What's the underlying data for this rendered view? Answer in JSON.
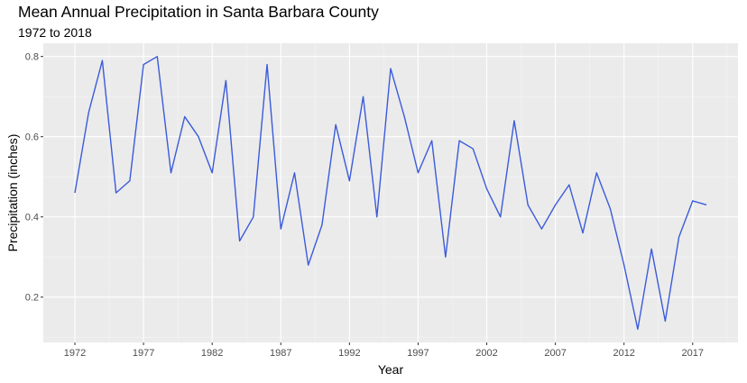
{
  "chart_data": {
    "type": "line",
    "title": "Mean Annual Precipitation in Santa Barbara County",
    "subtitle": "1972 to 2018",
    "xlabel": "Year",
    "ylabel": "Precipitation (inches)",
    "xlim": [
      1969.7,
      2020.3
    ],
    "ylim": [
      0.087,
      0.833
    ],
    "xticks": [
      1972,
      1977,
      1982,
      1987,
      1992,
      1997,
      2002,
      2007,
      2012,
      2017
    ],
    "yticks": [
      0.2,
      0.4,
      0.6,
      0.8
    ],
    "x_tick_labels": [
      "1972",
      "1977",
      "1982",
      "1987",
      "1992",
      "1997",
      "2002",
      "2007",
      "2012",
      "2017"
    ],
    "y_tick_labels": [
      "0.2",
      "0.4",
      "0.6",
      "0.8"
    ],
    "grid": true,
    "line_color": "#3b5bdb",
    "x": [
      1972,
      1973,
      1974,
      1975,
      1976,
      1977,
      1978,
      1979,
      1980,
      1981,
      1982,
      1983,
      1984,
      1985,
      1986,
      1987,
      1988,
      1989,
      1990,
      1991,
      1992,
      1993,
      1994,
      1995,
      1996,
      1997,
      1998,
      1999,
      2000,
      2001,
      2002,
      2003,
      2004,
      2005,
      2006,
      2007,
      2008,
      2009,
      2010,
      2011,
      2012,
      2013,
      2014,
      2015,
      2016,
      2017,
      2018
    ],
    "values": [
      0.46,
      0.66,
      0.79,
      0.46,
      0.49,
      0.78,
      0.8,
      0.51,
      0.65,
      0.6,
      0.51,
      0.74,
      0.34,
      0.4,
      0.78,
      0.37,
      0.51,
      0.28,
      0.38,
      0.63,
      0.49,
      0.7,
      0.4,
      0.77,
      0.65,
      0.51,
      0.59,
      0.3,
      0.59,
      0.57,
      0.47,
      0.4,
      0.64,
      0.43,
      0.37,
      0.43,
      0.48,
      0.36,
      0.51,
      0.42,
      0.28,
      0.12,
      0.32,
      0.14,
      0.35,
      0.44,
      0.43
    ]
  }
}
